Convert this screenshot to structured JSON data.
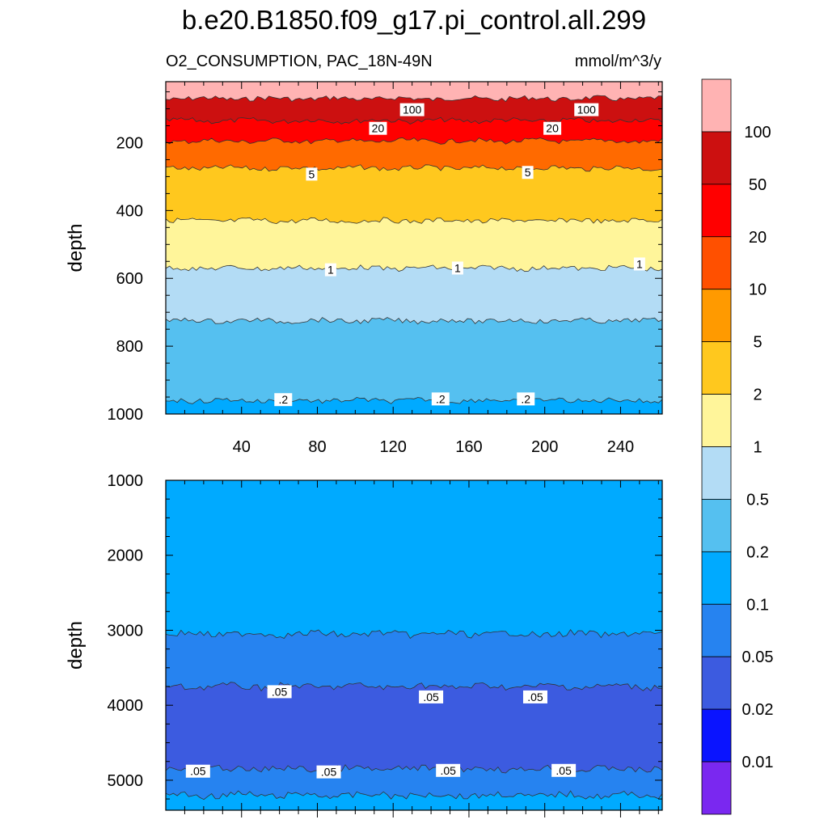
{
  "figure": {
    "title": "b.e20.B1850.f09_g17.pi_control.all.299",
    "subtitle_left": "O2_CONSUMPTION, PAC_18N-49N",
    "subtitle_right": "mmol/m^3/y"
  },
  "chart_data": [
    {
      "type": "heatmap",
      "panel": "upper",
      "ylabel": "depth",
      "xlabel": "",
      "xlim": [
        0,
        262
      ],
      "ylim": [
        1000,
        20
      ],
      "xticks": [
        40,
        80,
        120,
        160,
        200,
        240
      ],
      "yticks": [
        200,
        400,
        600,
        800,
        1000
      ],
      "bands": [
        {
          "from": 20,
          "to": 70,
          "level": ">100",
          "color": "#ffb3b3"
        },
        {
          "from": 70,
          "to": 135,
          "level": "50-100",
          "color": "#cc1010"
        },
        {
          "from": 135,
          "to": 195,
          "level": "20-50",
          "color": "#ff0000"
        },
        {
          "from": 195,
          "to": 275,
          "level": "5-20",
          "color": "#ff6a00"
        },
        {
          "from": 275,
          "to": 430,
          "level": "2-5",
          "color": "#ffc81e"
        },
        {
          "from": 430,
          "to": 570,
          "level": "1-2",
          "color": "#fff59a"
        },
        {
          "from": 570,
          "to": 725,
          "level": "0.5-1",
          "color": "#b3dcf5"
        },
        {
          "from": 725,
          "to": 960,
          "level": "0.2-0.5",
          "color": "#55c0f0"
        },
        {
          "from": 960,
          "to": 1000,
          "level": "0.1-0.2",
          "color": "#00aaff"
        }
      ],
      "contour_labels": [
        {
          "text": "100",
          "x": 130,
          "y": 105
        },
        {
          "text": "100",
          "x": 222,
          "y": 105
        },
        {
          "text": "20",
          "x": 112,
          "y": 160
        },
        {
          "text": "20",
          "x": 204,
          "y": 160
        },
        {
          "text": "5",
          "x": 77,
          "y": 295
        },
        {
          "text": "5",
          "x": 191,
          "y": 290
        },
        {
          "text": "1",
          "x": 87,
          "y": 577
        },
        {
          "text": "1",
          "x": 154,
          "y": 572
        },
        {
          "text": "1",
          "x": 250,
          "y": 560
        },
        {
          "text": ".2",
          "x": 62,
          "y": 960
        },
        {
          "text": ".2",
          "x": 145,
          "y": 958
        },
        {
          "text": ".2",
          "x": 190,
          "y": 958
        }
      ]
    },
    {
      "type": "heatmap",
      "panel": "lower",
      "ylabel": "depth",
      "xlabel": "",
      "xlim": [
        0,
        262
      ],
      "ylim": [
        5400,
        1000
      ],
      "xticks": [
        40,
        80,
        120,
        160,
        200,
        240
      ],
      "yticks": [
        1000,
        2000,
        3000,
        4000,
        5000
      ],
      "bands": [
        {
          "from": 1000,
          "to": 3050,
          "level": "0.1-0.2",
          "color": "#00aaff"
        },
        {
          "from": 3050,
          "to": 3750,
          "level": "0.05-0.1",
          "color": "#2683f0"
        },
        {
          "from": 3750,
          "to": 4850,
          "level": "0.02-0.05",
          "color": "#3c5be0"
        },
        {
          "from": 4850,
          "to": 5200,
          "level": "0.05-0.1",
          "color": "#2683f0"
        },
        {
          "from": 5200,
          "to": 5400,
          "level": "0.1-0.2",
          "color": "#00aaff"
        }
      ],
      "contour_labels": [
        {
          "text": ".05",
          "x": 60,
          "y": 3830
        },
        {
          "text": ".05",
          "x": 140,
          "y": 3900
        },
        {
          "text": ".05",
          "x": 195,
          "y": 3900
        },
        {
          "text": ".05",
          "x": 17,
          "y": 4890
        },
        {
          "text": ".05",
          "x": 86,
          "y": 4900
        },
        {
          "text": ".05",
          "x": 149,
          "y": 4880
        },
        {
          "text": ".05",
          "x": 210,
          "y": 4880
        }
      ]
    }
  ],
  "colorbar": {
    "colors": [
      "#ffb3b3",
      "#cc1010",
      "#ff0000",
      "#ff5000",
      "#ff9a00",
      "#ffc81e",
      "#fff59a",
      "#b3dcf5",
      "#55c0f0",
      "#00aaff",
      "#2683f0",
      "#3c5be0",
      "#0a14ff",
      "#7a28f0"
    ],
    "labels": [
      "100",
      "50",
      "20",
      "10",
      "5",
      "2",
      "1",
      "0.5",
      "0.2",
      "0.1",
      "0.05",
      "0.02",
      "0.01"
    ]
  }
}
